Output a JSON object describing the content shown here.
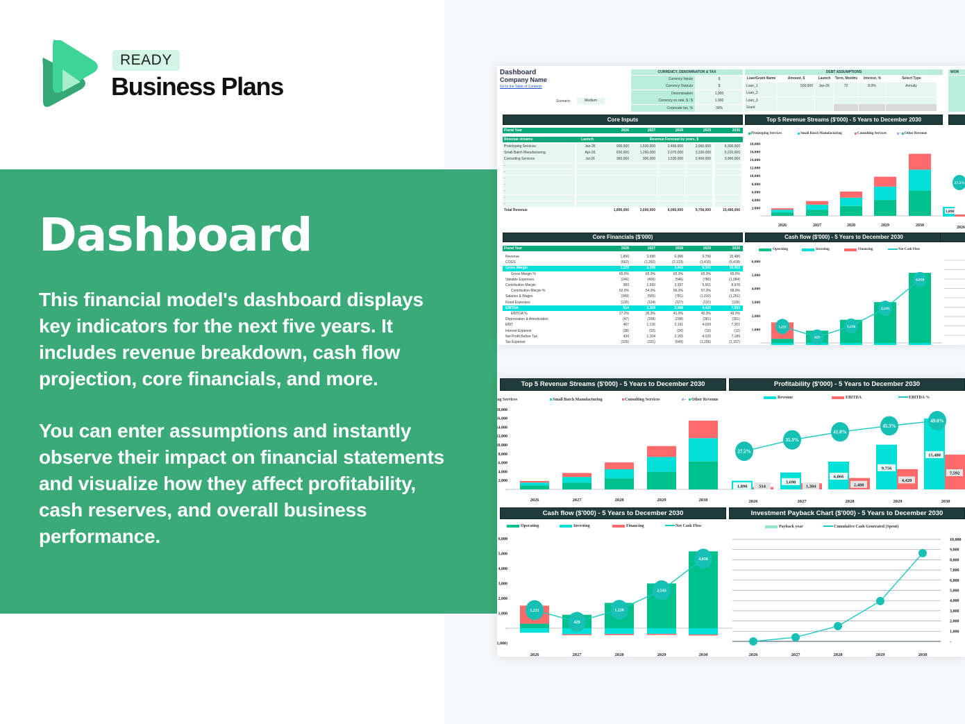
{
  "brand": {
    "badge": "READY",
    "name": "Business Plans"
  },
  "hero": {
    "title": "Dashboard",
    "paragraph1": "This financial model's dashboard displays key indicators for the next five years. It includes revenue breakdown, cash flow projection, core financials, and more.",
    "paragraph2": "You can enter assumptions and instantly observe their impact on financial statements and visualize how they affect profitability, cash reserves, and overall business performance."
  },
  "colors": {
    "green_band": "#3aaa79",
    "dark_header": "#1f3b3b",
    "table_green": "#0aa77a",
    "operating": "#00c08b",
    "investing": "#00e0d8",
    "financing": "#ff6b6b",
    "line": "#1cc8c0",
    "ebitda": "#ff6b6b",
    "revenue": "#00e0d8"
  },
  "sheet": {
    "title": "Dashboard",
    "company": "Company Name",
    "toc_link": "Go to the Table of Contents",
    "scenario_label": "Scenario:",
    "scenario_value": "Medium",
    "currency": {
      "title": "CURRENCY, DENOMINATOR & TAX",
      "rows": [
        [
          "Currency Inputs",
          "$"
        ],
        [
          "Currency Outputs",
          "$"
        ],
        [
          "Denomination",
          "1,000"
        ],
        [
          "Currency ex rate, $ / $",
          "1.000"
        ],
        [
          "Corporate tax, %",
          "30%"
        ]
      ]
    },
    "debt": {
      "title": "DEBT ASSUMPTIONS",
      "headers": [
        "Loan/Grant Name",
        "Amount, $",
        "Launch",
        "Term, Months",
        "Interest, %",
        "Select Type"
      ],
      "rows": [
        [
          "Loan_1",
          "500,000",
          "Jan-26",
          "72",
          "8.0%",
          "Annuity"
        ],
        [
          "Loan_2",
          "",
          "",
          "",
          "",
          ""
        ],
        [
          "Loan_3",
          "",
          "",
          "",
          "",
          ""
        ],
        [
          "Grant",
          "",
          "",
          "",
          "",
          ""
        ]
      ]
    },
    "working_title": "WOR",
    "core_inputs": {
      "title": "Core Inputs",
      "fiscal_label": "Fiscal Year",
      "years": [
        "2026",
        "2027",
        "2028",
        "2029",
        "2030"
      ],
      "col_stream": "Revenue streams",
      "col_launch": "Launch",
      "col_forecast": "Revenue Forecast by years, $",
      "rows": [
        [
          "Prototyping Services",
          "Jan-26",
          "900,000",
          "1,530,000",
          "2,466,000",
          "3,960,000",
          "6,300,000"
        ],
        [
          "Small Batch Manufacturing",
          "Apr-26",
          "630,000",
          "1,260,000",
          "2,070,000",
          "3,330,000",
          "5,220,000"
        ],
        [
          "Consulting Services",
          "Jul-26",
          "360,000",
          "900,000",
          "1,530,000",
          "2,466,000",
          "3,960,000"
        ],
        [
          "-",
          "",
          "",
          "",
          "",
          "",
          ""
        ],
        [
          "-",
          "",
          "",
          "",
          "",
          "",
          ""
        ],
        [
          "-",
          "",
          "",
          "",
          "",
          "",
          ""
        ],
        [
          "-",
          "",
          "",
          "",
          "",
          "",
          ""
        ],
        [
          "-",
          "",
          "",
          "",
          "",
          "",
          ""
        ],
        [
          "-",
          "",
          "",
          "",
          "",
          "",
          ""
        ],
        [
          "-",
          "",
          "",
          "",
          "",
          "",
          ""
        ]
      ],
      "total": [
        "Total Revenue",
        "1,890,000",
        "3,690,000",
        "6,066,000",
        "9,756,000",
        "15,480,000"
      ]
    },
    "core_financials": {
      "title": "Core Financials ($'000)",
      "fiscal_label": "Fiscal Year",
      "years": [
        "2026",
        "2027",
        "2028",
        "2029",
        "2030"
      ],
      "rows": [
        {
          "label": "Revenue",
          "values": [
            "1,890",
            "3,690",
            "6,066",
            "9,756",
            "15,480"
          ]
        },
        {
          "label": "COGS",
          "values": [
            "(662)",
            "(1,292)",
            "(2,123)",
            "(3,415)",
            "(5,418)"
          ]
        },
        {
          "label": "Gross Margin",
          "values": [
            "1,229",
            "2,399",
            "3,943",
            "6,341",
            "10,062"
          ],
          "highlight": true
        },
        {
          "label": "Gross Margin %",
          "values": [
            "65.0%",
            "65.0%",
            "65.0%",
            "65.0%",
            "65.0%"
          ],
          "indent": true
        },
        {
          "label": "Variable Expenses",
          "values": [
            "(246)",
            "(406)",
            "(546)",
            "(780)",
            "(1,084)"
          ]
        },
        {
          "label": "Contribution Margin",
          "values": [
            "983",
            "1,993",
            "3,397",
            "5,561",
            "8,978"
          ]
        },
        {
          "label": "Contribution Margin %",
          "values": [
            "52.0%",
            "54.0%",
            "56.0%",
            "57.0%",
            "58.0%"
          ],
          "indent": true
        },
        {
          "label": "Salaries & Wages",
          "values": [
            "(349)",
            "(565)",
            "(781)",
            "(1,010)",
            "(1,251)"
          ]
        },
        {
          "label": "Fixed Expenses",
          "values": [
            "(120)",
            "(124)",
            "(127)",
            "(131)",
            "(135)"
          ]
        },
        {
          "label": "EBITDA",
          "values": [
            "514",
            "1,304",
            "2,488",
            "4,420",
            "7,592"
          ],
          "highlight": true
        },
        {
          "label": "EBITDA %",
          "values": [
            "27.2%",
            "35.3%",
            "41.0%",
            "45.3%",
            "49.0%"
          ],
          "indent": true
        },
        {
          "label": "Depreciation & Amortization",
          "values": [
            "(47)",
            "(168)",
            "(298)",
            "(381)",
            "(391)"
          ]
        },
        {
          "label": "EBIT",
          "values": [
            "467",
            "1,136",
            "2,191",
            "4,039",
            "7,201"
          ]
        },
        {
          "label": "Interest Expense",
          "values": [
            "(38)",
            "(32)",
            "(26)",
            "(19)",
            "(12)"
          ]
        },
        {
          "label": "Net Profit Before Tax",
          "values": [
            "430",
            "1,104",
            "2,165",
            "4,020",
            "7,189"
          ]
        },
        {
          "label": "Tax Expense",
          "values": [
            "(129)",
            "(331)",
            "(649)",
            "(1,206)",
            "(2,157)"
          ]
        }
      ]
    }
  },
  "chart_data": [
    {
      "id": "revenue_streams",
      "type": "bar",
      "stacked": true,
      "title": "Top 5 Revenue Streams ($'000) - 5 Years to December 2030",
      "categories": [
        "2026",
        "2027",
        "2028",
        "2029",
        "2030"
      ],
      "series": [
        {
          "name": "Prototyping Services",
          "values": [
            900,
            1530,
            2466,
            3960,
            6300
          ],
          "color": "#00c08b"
        },
        {
          "name": "Small Batch Manufacturing",
          "values": [
            630,
            1260,
            2070,
            3330,
            5220
          ],
          "color": "#00e0d8"
        },
        {
          "name": "Consulting Services",
          "values": [
            360,
            900,
            1530,
            2466,
            3960
          ],
          "color": "#ff6b6b"
        },
        {
          "name": "-",
          "values": [
            0,
            0,
            0,
            0,
            0
          ],
          "color": "#9aa8ff"
        },
        {
          "name": "Other Revenue",
          "values": [
            0,
            0,
            0,
            0,
            0
          ],
          "color": "#1cc8c0"
        }
      ],
      "ylim": [
        0,
        18000
      ],
      "yticks": [
        "-",
        "2,000",
        "4,000",
        "6,000",
        "8,000",
        "10,000",
        "12,000",
        "14,000",
        "16,000",
        "18,000"
      ],
      "legend": "top"
    },
    {
      "id": "cash_flow",
      "type": "bar",
      "stacked": true,
      "title": "Cash flow ($'000) - 5 Years to December 2030",
      "categories": [
        "2026",
        "2027",
        "2028",
        "2029",
        "2030"
      ],
      "series": [
        {
          "name": "Operating",
          "values": [
            300,
            900,
            1700,
            3000,
            5150
          ],
          "color": "#00c08b"
        },
        {
          "name": "Investing",
          "values": [
            -300,
            -400,
            -390,
            -380,
            -420
          ],
          "color": "#00e0d8"
        },
        {
          "name": "Financing",
          "values": [
            1211,
            -71,
            -74,
            -75,
            -72
          ],
          "color": "#ff6b6b"
        }
      ],
      "line": {
        "name": "Net Cash Flow",
        "values": [
          1211,
          429,
          1236,
          2545,
          4658
        ],
        "labels": [
          "1,211",
          "429",
          "1,236",
          "2,545",
          "4,658"
        ],
        "color": "#1cc8c0"
      },
      "ylim": [
        -1000,
        6000
      ],
      "yticks": [
        "(1,000)",
        "-",
        "1,000",
        "2,000",
        "3,000",
        "4,000",
        "5,000",
        "6,000"
      ],
      "legend": "top"
    },
    {
      "id": "profitability",
      "type": "bar",
      "title": "Profitability ($'000) - 5 Years to December 2030",
      "categories": [
        "2026",
        "2027",
        "2028",
        "2029",
        "2030"
      ],
      "series": [
        {
          "name": "Revenue",
          "values": [
            1890,
            3690,
            6066,
            9756,
            15480
          ],
          "labels": [
            "1,890",
            "3,690",
            "6,066",
            "9,756",
            "15,480"
          ],
          "color": "#00e0d8"
        },
        {
          "name": "EBITDA",
          "values": [
            514,
            1304,
            2488,
            4420,
            7592
          ],
          "labels": [
            "514",
            "1,304",
            "2,488",
            "4,420",
            "7,592"
          ],
          "color": "#ff6b6b"
        }
      ],
      "line": {
        "name": "EBITDA %",
        "values": [
          27.2,
          35.3,
          41.0,
          45.3,
          49.0
        ],
        "labels": [
          "27.2%",
          "35.3%",
          "41.0%",
          "45.3%",
          "49.0%"
        ],
        "color": "#1cc8c0"
      },
      "legend": "top"
    },
    {
      "id": "investment_payback",
      "type": "line",
      "title": "Investment Payback Chart ($'000) - 5 Years to December 2030",
      "categories": [
        "2026",
        "2027",
        "2028",
        "2029",
        "2030"
      ],
      "legend_entries": [
        "Payback year",
        "Cumulative Cash Generated (Spent)"
      ],
      "series": [
        {
          "name": "Cumulative Cash Generated (Spent)",
          "values": [
            0,
            400,
            1500,
            3950,
            8650
          ],
          "color": "#1cc8c0"
        }
      ],
      "ylim": [
        0,
        10000
      ],
      "yticks": [
        "-",
        "1,000",
        "2,000",
        "3,000",
        "4,000",
        "5,000",
        "6,000",
        "7,000",
        "8,000",
        "9,000",
        "10,000"
      ],
      "y_axis_side": "right",
      "grid": true,
      "legend": "top"
    }
  ]
}
